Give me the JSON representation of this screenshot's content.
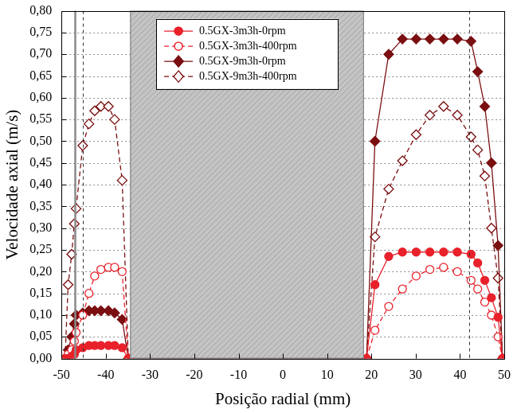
{
  "chart_data": {
    "type": "line",
    "x_label": "Posição radial (mm)",
    "y_label": "Velocidade axial (m/s)",
    "x": [
      -49.2,
      -48.5,
      -47.7,
      -47.1,
      -46.7,
      -45.2,
      -43.8,
      -42.5,
      -41.1,
      -39.4,
      -38.0,
      -36.3,
      -34.9,
      18.9,
      20.8,
      23.9,
      27.0,
      30.1,
      33.2,
      36.3,
      39.4,
      42.5,
      44.0,
      45.6,
      47.1,
      48.6,
      49.6
    ],
    "series": [
      {
        "name": "0.5GX-3m3h-0rpm",
        "color": "#e8212b",
        "marker": "circle",
        "line_style": "solid",
        "values": [
          0,
          0,
          0.005,
          0.01,
          0.02,
          0.025,
          0.03,
          0.03,
          0.03,
          0.03,
          0.03,
          0.025,
          0,
          0,
          0.17,
          0.235,
          0.245,
          0.245,
          0.245,
          0.245,
          0.245,
          0.24,
          0.22,
          0.18,
          0.14,
          0.095,
          0
        ]
      },
      {
        "name": "0.5GX-3m3h-400rpm",
        "color": "#e8212b",
        "marker": "circle-open",
        "line_style": "dashed",
        "values": [
          0,
          0.01,
          0.02,
          0.04,
          0.06,
          0.1,
          0.15,
          0.19,
          0.205,
          0.21,
          0.21,
          0.2,
          0,
          0,
          0.065,
          0.12,
          0.16,
          0.19,
          0.205,
          0.21,
          0.2,
          0.18,
          0.16,
          0.13,
          0.1,
          0.05,
          0
        ]
      },
      {
        "name": "0.5GX-9m3h-0rpm",
        "color": "#7a0e10",
        "marker": "diamond",
        "line_style": "solid",
        "values": [
          0,
          0.02,
          0.05,
          0.08,
          0.1,
          0.105,
          0.11,
          0.11,
          0.11,
          0.11,
          0.105,
          0.09,
          0,
          0,
          0.5,
          0.7,
          0.735,
          0.735,
          0.735,
          0.735,
          0.735,
          0.73,
          0.66,
          0.58,
          0.45,
          0.26,
          0
        ]
      },
      {
        "name": "0.5GX-9m3h-400rpm",
        "color": "#7a0e10",
        "marker": "diamond-open",
        "line_style": "dashed",
        "values": [
          0,
          0.17,
          0.24,
          0.31,
          0.345,
          0.49,
          0.54,
          0.57,
          0.58,
          0.58,
          0.55,
          0.41,
          0,
          0,
          0.28,
          0.39,
          0.455,
          0.515,
          0.56,
          0.58,
          0.56,
          0.51,
          0.48,
          0.42,
          0.3,
          0.185,
          0
        ]
      }
    ],
    "xlim": [
      -50,
      50
    ],
    "xticks": [
      -50,
      -40,
      -30,
      -20,
      -10,
      0,
      10,
      20,
      30,
      40,
      50
    ],
    "ylim": [
      0,
      0.8
    ],
    "yticks": [
      {
        "value": 0,
        "label": "0,00"
      },
      {
        "value": 0.05,
        "label": "0,05"
      },
      {
        "value": 0.1,
        "label": "0,10"
      },
      {
        "value": 0.15,
        "label": "0,15"
      },
      {
        "value": 0.2,
        "label": "0,20"
      },
      {
        "value": 0.25,
        "label": "0,25"
      },
      {
        "value": 0.3,
        "label": "0,30"
      },
      {
        "value": 0.35,
        "label": "0,35"
      },
      {
        "value": 0.4,
        "label": "0,40"
      },
      {
        "value": 0.45,
        "label": "0,45"
      },
      {
        "value": 0.5,
        "label": "0,50"
      },
      {
        "value": 0.55,
        "label": "0,55"
      },
      {
        "value": 0.6,
        "label": "0,60"
      },
      {
        "value": 0.65,
        "label": "0,65"
      },
      {
        "value": 0.7,
        "label": "0,70"
      },
      {
        "value": 0.75,
        "label": "0,75"
      },
      {
        "value": 0.8,
        "label": "0,80"
      }
    ],
    "grid": "y",
    "legend": "top",
    "shaded_region": [
      -34.5,
      18.3
    ],
    "vlines": [
      {
        "x": -46.9,
        "line_style": "solid"
      },
      {
        "x": -45.2,
        "line_style": "dashed"
      },
      {
        "x": 42.1,
        "line_style": "dashed"
      }
    ]
  }
}
